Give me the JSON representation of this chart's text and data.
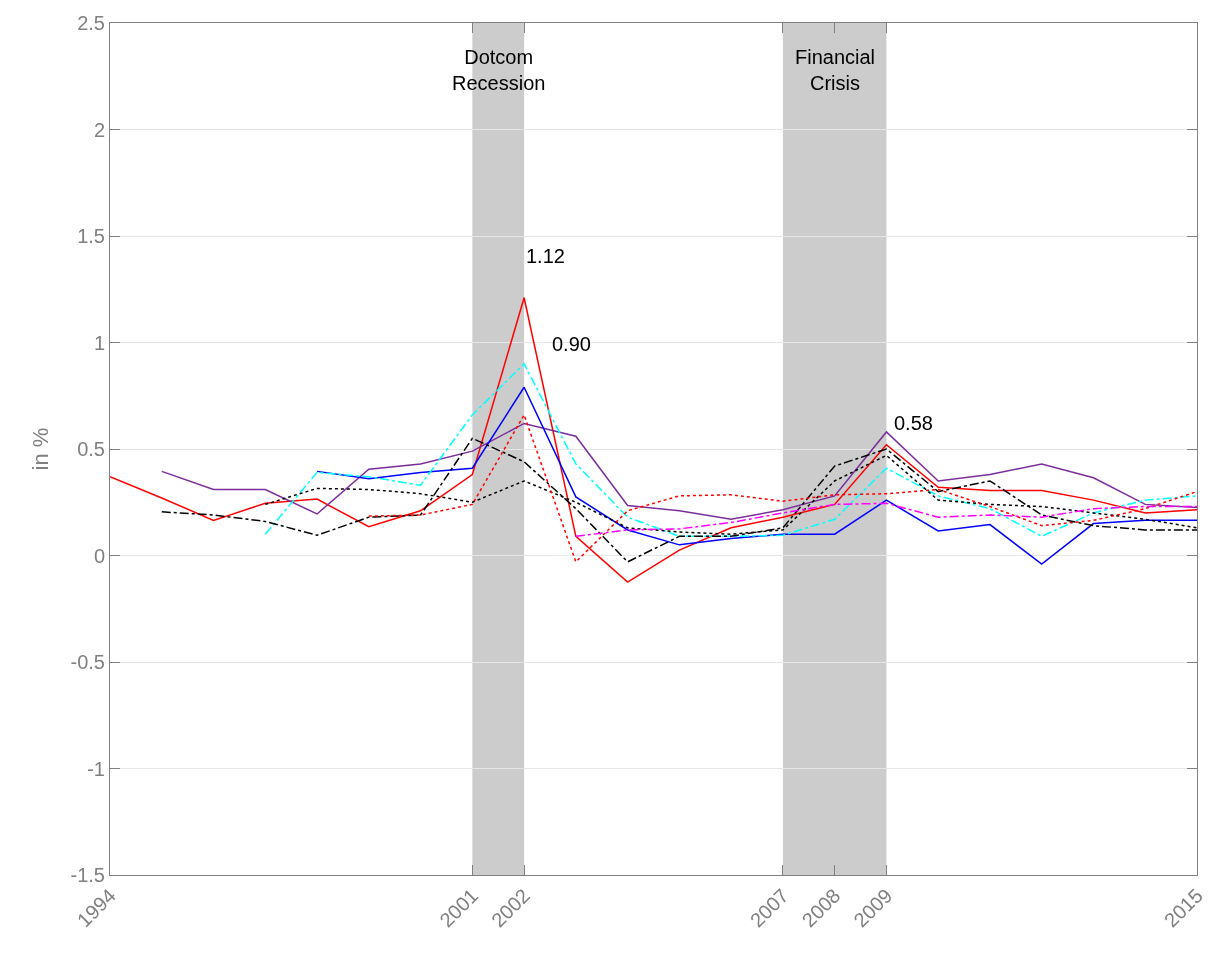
{
  "chart_data": {
    "type": "line",
    "ylabel": "in %",
    "xlim": [
      1994,
      2015
    ],
    "xticks": [
      1994,
      2001,
      2002,
      2007,
      2008,
      2009,
      2015
    ],
    "ylim": [
      -1.5,
      2.5
    ],
    "yticks": [
      -1.5,
      -1,
      -0.5,
      0,
      0.5,
      1,
      1.5,
      2,
      2.5
    ],
    "grid": "y",
    "legend": false,
    "marker": "none",
    "series": [
      {
        "color": "#ff0000",
        "line_style": "solid",
        "x": [
          1994,
          1995,
          1996,
          1997,
          1998,
          1999,
          2000,
          2001,
          2002,
          2003,
          2004,
          2005,
          2006,
          2007,
          2008,
          2009,
          2010,
          2011,
          2012,
          2013,
          2014,
          2015
        ],
        "values": [
          0.37,
          0.27,
          0.165,
          0.245,
          0.265,
          0.135,
          0.21,
          0.38,
          1.21,
          0.09,
          -0.125,
          0.025,
          0.13,
          0.18,
          0.24,
          0.52,
          0.32,
          0.305,
          0.305,
          0.26,
          0.2,
          0.215
        ]
      },
      {
        "color": "#7b2d9b",
        "line_style": "solid",
        "x": [
          1995,
          1996,
          1997,
          1998,
          1999,
          2000,
          2001,
          2002,
          2003,
          2004,
          2005,
          2006,
          2007,
          2008,
          2009,
          2010,
          2011,
          2012,
          2013,
          2014,
          2015
        ],
        "values": [
          0.395,
          0.31,
          0.31,
          0.195,
          0.405,
          0.43,
          0.49,
          0.62,
          0.56,
          0.235,
          0.21,
          0.17,
          0.215,
          0.28,
          0.58,
          0.35,
          0.38,
          0.43,
          0.365,
          0.24,
          0.225
        ]
      },
      {
        "color": "#0000ff",
        "line_style": "solid",
        "x": [
          1998,
          1999,
          2000,
          2001,
          2002,
          2003,
          2004,
          2005,
          2006,
          2007,
          2008,
          2009,
          2010,
          2011,
          2012,
          2013,
          2014,
          2015
        ],
        "values": [
          0.395,
          0.36,
          0.39,
          0.41,
          0.79,
          0.275,
          0.12,
          0.05,
          0.08,
          0.1,
          0.1,
          0.26,
          0.115,
          0.145,
          -0.04,
          0.15,
          0.165,
          0.165
        ]
      },
      {
        "color": "#00ffff",
        "line_style": "dashdot",
        "x": [
          1997,
          1998,
          1999,
          2000,
          2001,
          2002,
          2003,
          2004,
          2005,
          2006,
          2007,
          2008,
          2009,
          2010,
          2011,
          2012,
          2013,
          2014,
          2015
        ],
        "values": [
          0.1,
          0.39,
          0.37,
          0.33,
          0.66,
          0.9,
          0.43,
          0.18,
          0.09,
          0.09,
          0.095,
          0.17,
          0.41,
          0.28,
          0.22,
          0.09,
          0.2,
          0.26,
          0.28
        ]
      },
      {
        "color": "#000000",
        "line_style": "dashdot",
        "x": [
          1995,
          1996,
          1997,
          1998,
          1999,
          2000,
          2001,
          2002,
          2003,
          2004,
          2005,
          2006,
          2007,
          2008,
          2009,
          2010,
          2011,
          2012,
          2013,
          2014,
          2015
        ],
        "values": [
          0.205,
          0.19,
          0.16,
          0.095,
          0.18,
          0.19,
          0.55,
          0.44,
          0.22,
          -0.03,
          0.09,
          0.09,
          0.13,
          0.42,
          0.5,
          0.3,
          0.35,
          0.19,
          0.14,
          0.12,
          0.12
        ]
      },
      {
        "color": "#000000",
        "line_style": "dotted",
        "x": [
          1997,
          1998,
          1999,
          2000,
          2001,
          2002,
          2003,
          2004,
          2005,
          2006,
          2007,
          2008,
          2009,
          2010,
          2011,
          2012,
          2013,
          2014,
          2015
        ],
        "values": [
          0.24,
          0.315,
          0.31,
          0.29,
          0.25,
          0.35,
          0.25,
          0.13,
          0.11,
          0.1,
          0.12,
          0.35,
          0.47,
          0.26,
          0.24,
          0.23,
          0.2,
          0.17,
          0.13
        ]
      },
      {
        "color": "#ff0000",
        "line_style": "dotted",
        "x": [
          1999,
          2000,
          2001,
          2002,
          2003,
          2004,
          2005,
          2006,
          2007,
          2008,
          2009,
          2010,
          2011,
          2012,
          2013,
          2014,
          2015
        ],
        "values": [
          0.185,
          0.19,
          0.24,
          0.66,
          -0.03,
          0.21,
          0.28,
          0.285,
          0.255,
          0.285,
          0.29,
          0.31,
          0.23,
          0.14,
          0.165,
          0.22,
          0.3
        ]
      },
      {
        "color": "#ff00ff",
        "line_style": "dashdot",
        "x": [
          2003,
          2004,
          2005,
          2006,
          2007,
          2008,
          2009,
          2010,
          2011,
          2012,
          2013,
          2014,
          2015
        ],
        "values": [
          0.09,
          0.12,
          0.125,
          0.155,
          0.2,
          0.24,
          0.245,
          0.18,
          0.19,
          0.18,
          0.22,
          0.23,
          0.23
        ]
      }
    ],
    "bands": [
      {
        "axis": "x",
        "from": 2001,
        "to": 2002,
        "label": "Dotcom\nRecession",
        "color": "#cccccc"
      },
      {
        "axis": "x",
        "from": 2007,
        "to": 2009,
        "label": "Financial\nCrisis",
        "color": "#cccccc"
      }
    ],
    "annotations": [
      "1.12",
      "0.90",
      "0.58"
    ]
  }
}
